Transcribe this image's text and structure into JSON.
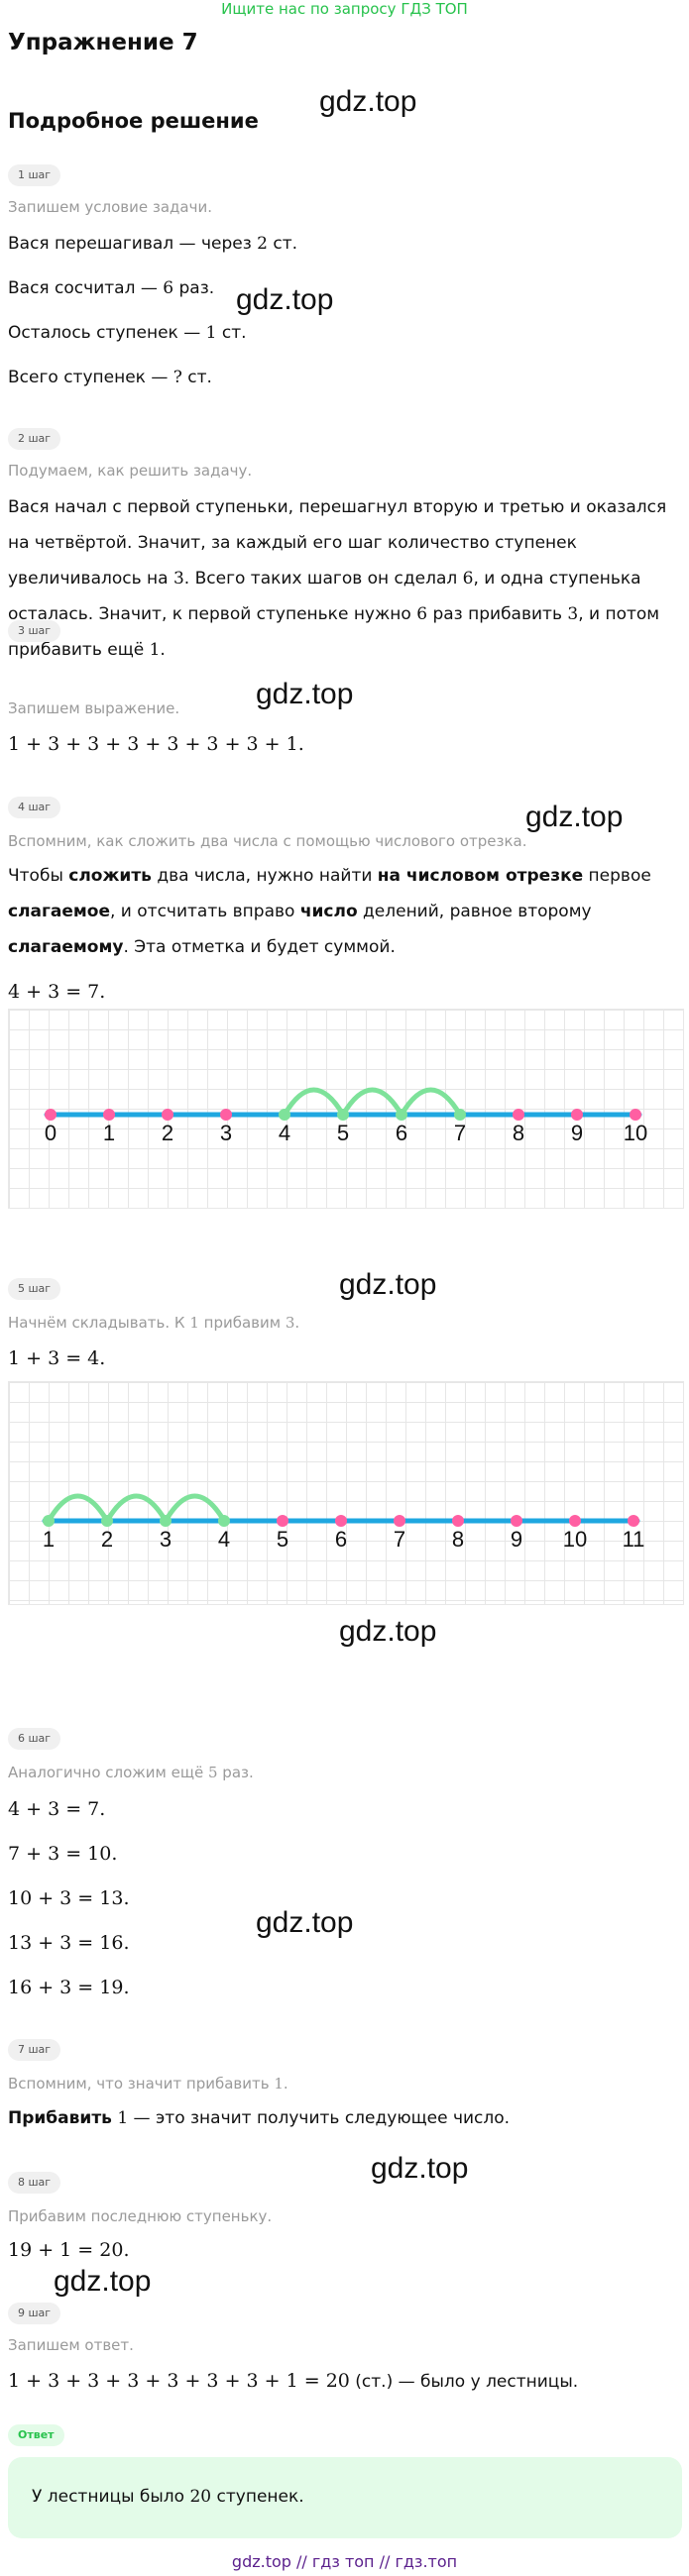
{
  "banner": "Ищите нас по запросу ГДЗ ТОП",
  "title": "Упражнение 7",
  "subtitle": "Подробное решение",
  "watermark": "gdz.top",
  "steps": [
    {
      "badge": "1 шаг",
      "hint": "Запишем условие задачи.",
      "lines": [
        {
          "pre": "Вася перешагивал — через ",
          "m": "2",
          "post": " ст."
        },
        {
          "pre": "Вася сосчитал — ",
          "m": "6",
          "post": " раз."
        },
        {
          "pre": "Осталось ступенек — ",
          "m": "1",
          "post": " ст."
        },
        {
          "pre": "Всего ступенек — ",
          "m": "?",
          "post": " ст."
        }
      ]
    },
    {
      "badge": "2 шаг",
      "hint": "Подумаем, как решить задачу.",
      "p1": "Вася начал с первой ступеньки, перешагнул вторую и третью и оказался на четвёртой. Значит, за каждый его шаг количество ступенек увеличивалось на ",
      "m1": "3",
      "p2": ". Всего таких шагов он сделал ",
      "m2": "6",
      "p3": ", и одна ступенька осталась. Значит, к первой ступеньке нужно ",
      "m3": "6",
      "p4": " раз прибавить ",
      "m4": "3",
      "p5": ", и потом прибавить ещё ",
      "m5": "1",
      "p6": "."
    },
    {
      "badge": "3 шаг",
      "hint": "Запишем выражение.",
      "expr": "1 + 3 + 3 + 3 + 3 + 3 + 3 + 1."
    },
    {
      "badge": "4 шаг",
      "hint": "Вспомним, как сложить два числа с помощью числового отрезка.",
      "r1": "Чтобы ",
      "b1": "сложить",
      "r2": " два числа, нужно найти ",
      "b2": "на числовом отрезке",
      "r3": " первое ",
      "b3": "слагаемое",
      "r4": ", и отсчитать вправо ",
      "b4": "число",
      "r5": " делений, равное второму ",
      "b5": "слагаемому",
      "r6": ". Эта отметка и будет суммой.",
      "expr": "4 + 3 = 7."
    },
    {
      "badge": "5 шаг",
      "hint_pre": "Начнём складывать. К ",
      "hint_m1": "1",
      "hint_mid": " прибавим ",
      "hint_m2": "3",
      "hint_post": ".",
      "expr": "1 + 3 = 4."
    },
    {
      "badge": "6 шаг",
      "hint_pre": "Аналогично сложим ещё ",
      "hint_m": "5",
      "hint_post": " раз.",
      "exprs": [
        "4 + 3 = 7.",
        "7 + 3 = 10.",
        "10 + 3 = 13.",
        "13 + 3 = 16.",
        "16 + 3 = 19."
      ]
    },
    {
      "badge": "7 шаг",
      "hint_pre": "Вспомним, что значит прибавить ",
      "hint_m": "1",
      "hint_post": ".",
      "bold": "Прибавить",
      "m": "1",
      "rest": " — это значит получить следующее число."
    },
    {
      "badge": "8 шаг",
      "hint": "Прибавим последнюю ступеньку.",
      "expr": "19 + 1 = 20."
    },
    {
      "badge": "9 шаг",
      "hint": "Запишем ответ.",
      "expr": "1 + 3 + 3 + 3 + 3 + 3 + 3 + 1 = 20",
      "unit": " (ст.)",
      "rest": " — было у лестницы."
    }
  ],
  "number_line_1": [
    "0",
    "1",
    "2",
    "3",
    "4",
    "5",
    "6",
    "7",
    "8",
    "9",
    "10"
  ],
  "number_line_2": [
    "1",
    "2",
    "3",
    "4",
    "5",
    "6",
    "7",
    "8",
    "9",
    "10",
    "11"
  ],
  "colors": {
    "line": "#1fa7e0",
    "dot": "#ff5fa2",
    "dot_active": "#7ee29a",
    "arc": "#7ee29a",
    "answer_bg": "#e3fbe8",
    "accent": "#27c24c"
  },
  "answer": {
    "badge": "Ответ",
    "pre": "У лестницы было ",
    "m": "20",
    "post": " ступенек."
  },
  "footer": "gdz.top  //  гдз топ  //  гдз.топ"
}
